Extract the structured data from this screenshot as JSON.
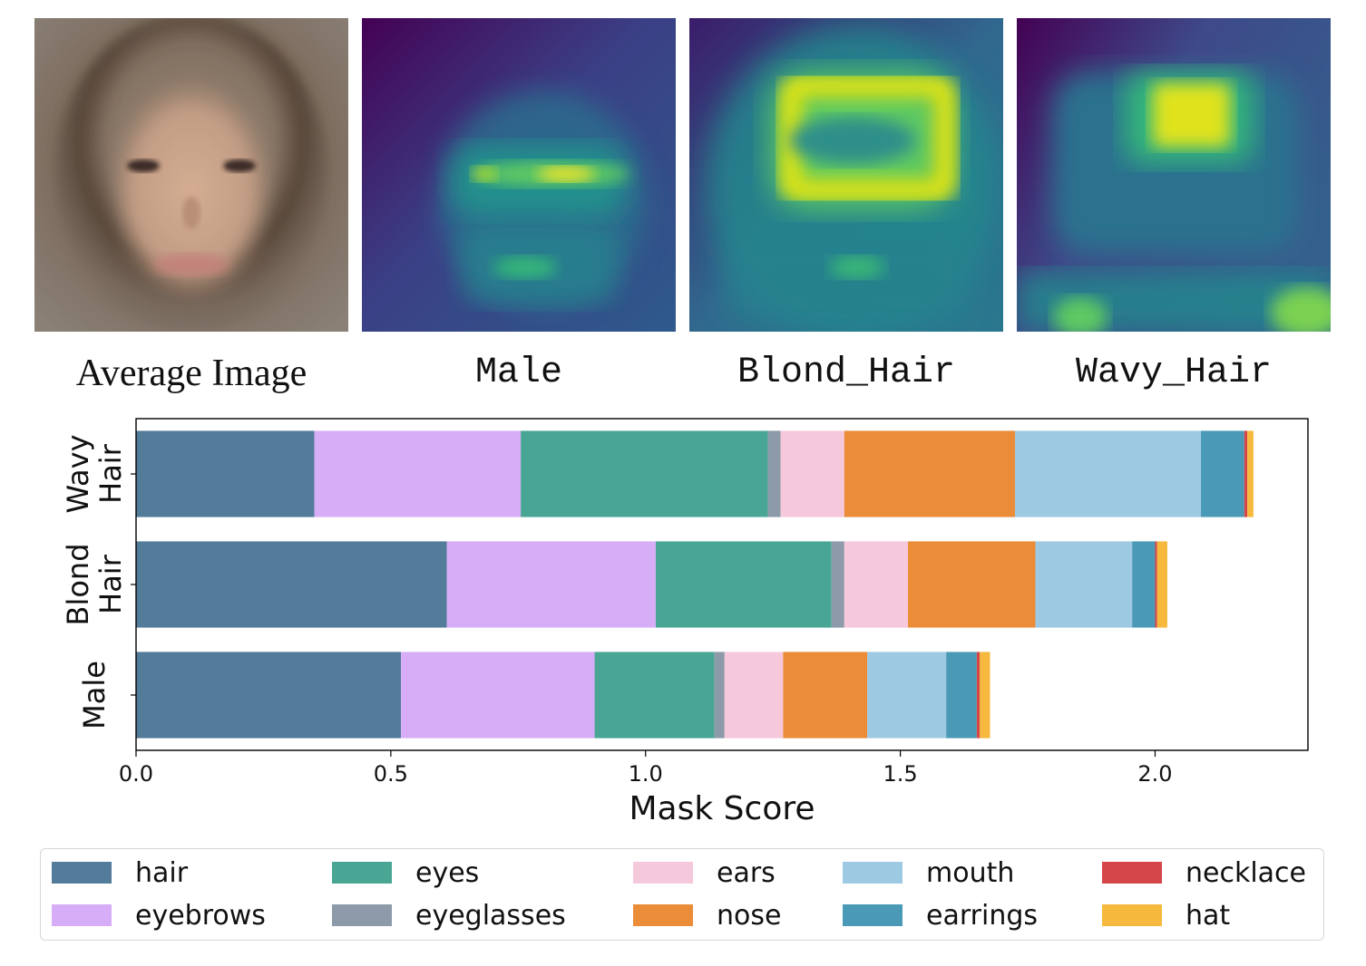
{
  "panels": [
    {
      "id": "average",
      "caption": "Average Image"
    },
    {
      "id": "male",
      "caption": "Male"
    },
    {
      "id": "blond",
      "caption": "Blond_Hair"
    },
    {
      "id": "wavy",
      "caption": "Wavy_Hair"
    }
  ],
  "colors": {
    "hair": "#537b9a",
    "eyebrows": "#d8adf8",
    "eyes": "#4aa694",
    "eyeglasses": "#8d9aa9",
    "ears": "#f5c8dc",
    "nose": "#ea8c38",
    "mouth": "#9ec9e3",
    "earrings": "#4a99b6",
    "necklace": "#d44649",
    "hat": "#f6b93d"
  },
  "chart_data": {
    "type": "bar",
    "orientation": "horizontal",
    "stacked": true,
    "categories": [
      "Wavy\nHair",
      "Blond\nHair",
      "Male"
    ],
    "xlabel": "Mask Score",
    "ylabel": "",
    "xlim": [
      0.0,
      2.3
    ],
    "xticks": [
      "0.0",
      "0.5",
      "1.0",
      "1.5",
      "2.0"
    ],
    "grid": false,
    "legend_position": "bottom",
    "series": [
      {
        "name": "hair",
        "values": [
          0.35,
          0.61,
          0.52
        ]
      },
      {
        "name": "eyebrows",
        "values": [
          0.405,
          0.41,
          0.38
        ]
      },
      {
        "name": "eyes",
        "values": [
          0.485,
          0.345,
          0.235
        ]
      },
      {
        "name": "eyeglasses",
        "values": [
          0.025,
          0.025,
          0.02
        ]
      },
      {
        "name": "ears",
        "values": [
          0.125,
          0.125,
          0.115
        ]
      },
      {
        "name": "nose",
        "values": [
          0.335,
          0.25,
          0.165
        ]
      },
      {
        "name": "mouth",
        "values": [
          0.365,
          0.19,
          0.155
        ]
      },
      {
        "name": "earrings",
        "values": [
          0.085,
          0.045,
          0.06
        ]
      },
      {
        "name": "necklace",
        "values": [
          0.006,
          0.004,
          0.006
        ]
      },
      {
        "name": "hat",
        "values": [
          0.012,
          0.02,
          0.02
        ]
      }
    ]
  }
}
